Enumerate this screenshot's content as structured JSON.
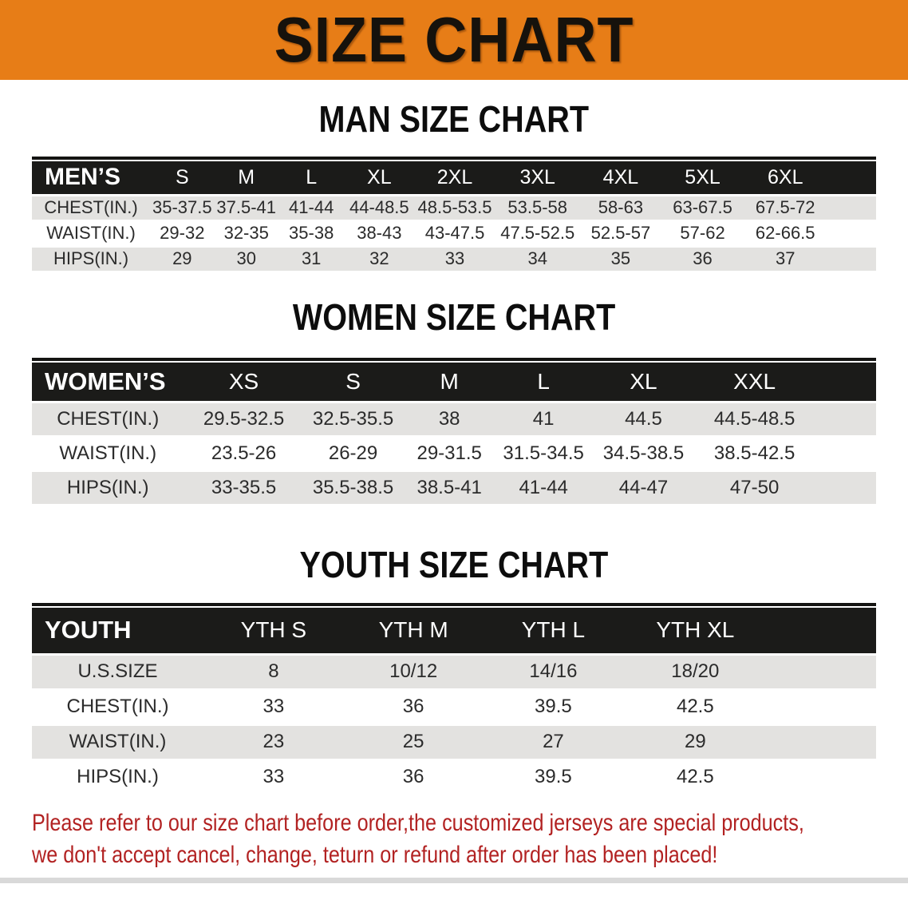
{
  "banner": {
    "title": "SIZE CHART",
    "bg_color": "#E77D17",
    "text_color": "#16120C"
  },
  "headings": {
    "man": "MAN SIZE CHART",
    "women": "WOMEN SIZE CHART",
    "youth": "YOUTH SIZE CHART"
  },
  "tables": {
    "men": {
      "label": "MEN’S",
      "sizes": [
        "S",
        "M",
        "L",
        "XL",
        "2XL",
        "3XL",
        "4XL",
        "5XL",
        "6XL"
      ],
      "rows": [
        {
          "label": "CHEST(IN.)",
          "values": [
            "35-37.5",
            "37.5-41",
            "41-44",
            "44-48.5",
            "48.5-53.5",
            "53.5-58",
            "58-63",
            "63-67.5",
            "67.5-72"
          ]
        },
        {
          "label": "WAIST(IN.)",
          "values": [
            "29-32",
            "32-35",
            "35-38",
            "38-43",
            "43-47.5",
            "47.5-52.5",
            "52.5-57",
            "57-62",
            "62-66.5"
          ]
        },
        {
          "label": "HIPS(IN.)",
          "values": [
            "29",
            "30",
            "31",
            "32",
            "33",
            "34",
            "35",
            "36",
            "37"
          ]
        }
      ]
    },
    "women": {
      "label": "WOMEN’S",
      "sizes": [
        "XS",
        "S",
        "M",
        "L",
        "XL",
        "XXL"
      ],
      "rows": [
        {
          "label": "CHEST(IN.)",
          "values": [
            "29.5-32.5",
            "32.5-35.5",
            "38",
            "41",
            "44.5",
            "44.5-48.5"
          ]
        },
        {
          "label": "WAIST(IN.)",
          "values": [
            "23.5-26",
            "26-29",
            "29-31.5",
            "31.5-34.5",
            "34.5-38.5",
            "38.5-42.5"
          ]
        },
        {
          "label": "HIPS(IN.)",
          "values": [
            "33-35.5",
            "35.5-38.5",
            "38.5-41",
            "41-44",
            "44-47",
            "47-50"
          ]
        }
      ]
    },
    "youth": {
      "label": "YOUTH",
      "sizes": [
        "YTH S",
        "YTH M",
        "YTH L",
        "YTH XL"
      ],
      "rows": [
        {
          "label": "U.S.SIZE",
          "values": [
            "8",
            "10/12",
            "14/16",
            "18/20"
          ]
        },
        {
          "label": "CHEST(IN.)",
          "values": [
            "33",
            "36",
            "39.5",
            "42.5"
          ]
        },
        {
          "label": "WAIST(IN.)",
          "values": [
            "23",
            "25",
            "27",
            "29"
          ]
        },
        {
          "label": "HIPS(IN.)",
          "values": [
            "33",
            "36",
            "39.5",
            "42.5"
          ]
        }
      ]
    }
  },
  "style_colors": {
    "header_row_bg": "#1B1B19",
    "gray_row_bg": "#E3E2E0",
    "disclaimer_text": "#B22222"
  },
  "disclaimer": {
    "line1": "Please refer to our size chart before order,the customized jerseys are special products,",
    "line2": "we don't accept cancel, change, teturn or refund after order has been placed!"
  }
}
